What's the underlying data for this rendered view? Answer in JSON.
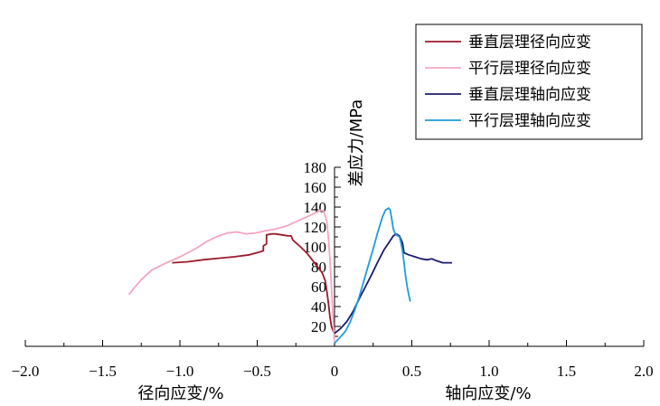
{
  "chart_data": {
    "type": "line",
    "title": "",
    "xlabel_left": "径向应变/%",
    "xlabel_right": "轴向应变/%",
    "ylabel": "差应力/MPa",
    "xlim": [
      -2.0,
      2.0
    ],
    "ylim": [
      0,
      180
    ],
    "x_ticks": [
      -2.0,
      -1.5,
      -1.0,
      -0.5,
      0,
      0.5,
      1.0,
      1.5,
      2.0
    ],
    "x_tick_labels": [
      "−2.0",
      "−1.5",
      "−1.0",
      "−0.5",
      "0",
      "0.5",
      "1.0",
      "1.5",
      "2.0"
    ],
    "y_ticks": [
      20,
      40,
      60,
      80,
      100,
      120,
      140,
      160,
      180
    ],
    "y_tick_labels": [
      "20",
      "40",
      "60",
      "80",
      "100",
      "120",
      "140",
      "160",
      "180"
    ],
    "grid": false,
    "legend_position": "top-right",
    "series": [
      {
        "name": "垂直层理径向应变",
        "color": "#9b1b2a",
        "points": [
          [
            -1.05,
            84
          ],
          [
            -0.95,
            85
          ],
          [
            -0.85,
            87
          ],
          [
            -0.75,
            88.5
          ],
          [
            -0.65,
            90
          ],
          [
            -0.55,
            92
          ],
          [
            -0.48,
            95
          ],
          [
            -0.46,
            96
          ],
          [
            -0.46,
            101
          ],
          [
            -0.44,
            103
          ],
          [
            -0.44,
            112
          ],
          [
            -0.41,
            113
          ],
          [
            -0.38,
            113
          ],
          [
            -0.34,
            112
          ],
          [
            -0.3,
            111
          ],
          [
            -0.28,
            111
          ],
          [
            -0.27,
            107
          ],
          [
            -0.25,
            104
          ],
          [
            -0.22,
            100
          ],
          [
            -0.18,
            94
          ],
          [
            -0.15,
            88
          ],
          [
            -0.11,
            80
          ],
          [
            -0.08,
            74
          ],
          [
            -0.06,
            66
          ],
          [
            -0.05,
            56
          ],
          [
            -0.04,
            44
          ],
          [
            -0.03,
            30
          ],
          [
            -0.02,
            20
          ],
          [
            0,
            12
          ]
        ]
      },
      {
        "name": "平行层理径向应变",
        "color": "#f4a6c0",
        "points": [
          [
            -1.33,
            52
          ],
          [
            -1.3,
            58
          ],
          [
            -1.25,
            67
          ],
          [
            -1.18,
            77
          ],
          [
            -1.1,
            83
          ],
          [
            -1.0,
            90
          ],
          [
            -0.9,
            98
          ],
          [
            -0.82,
            106
          ],
          [
            -0.75,
            111
          ],
          [
            -0.69,
            114
          ],
          [
            -0.63,
            115
          ],
          [
            -0.57,
            113
          ],
          [
            -0.51,
            114
          ],
          [
            -0.45,
            116
          ],
          [
            -0.38,
            118
          ],
          [
            -0.31,
            121
          ],
          [
            -0.24,
            126
          ],
          [
            -0.18,
            130
          ],
          [
            -0.14,
            133
          ],
          [
            -0.11,
            135
          ],
          [
            -0.09,
            137
          ],
          [
            -0.07,
            136
          ],
          [
            -0.05,
            126
          ],
          [
            -0.04,
            110
          ],
          [
            -0.03,
            88
          ],
          [
            -0.02,
            60
          ],
          [
            -0.01,
            30
          ],
          [
            0,
            3
          ]
        ]
      },
      {
        "name": "垂直层理轴向应变",
        "color": "#1c1c6e",
        "points": [
          [
            0,
            13
          ],
          [
            0.04,
            18
          ],
          [
            0.08,
            25
          ],
          [
            0.12,
            35
          ],
          [
            0.16,
            48
          ],
          [
            0.2,
            60
          ],
          [
            0.24,
            72
          ],
          [
            0.28,
            85
          ],
          [
            0.32,
            97
          ],
          [
            0.35,
            104
          ],
          [
            0.38,
            111
          ],
          [
            0.4,
            113
          ],
          [
            0.42,
            111
          ],
          [
            0.44,
            104
          ],
          [
            0.45,
            94
          ],
          [
            0.48,
            92
          ],
          [
            0.52,
            90
          ],
          [
            0.56,
            88
          ],
          [
            0.6,
            87
          ],
          [
            0.63,
            88
          ],
          [
            0.66,
            86
          ],
          [
            0.7,
            84
          ],
          [
            0.74,
            84
          ],
          [
            0.76,
            84
          ]
        ]
      },
      {
        "name": "平行层理轴向应变",
        "color": "#1e9cd8",
        "points": [
          [
            0,
            3
          ],
          [
            0.03,
            8
          ],
          [
            0.07,
            15
          ],
          [
            0.1,
            24
          ],
          [
            0.13,
            36
          ],
          [
            0.16,
            50
          ],
          [
            0.19,
            66
          ],
          [
            0.22,
            82
          ],
          [
            0.25,
            98
          ],
          [
            0.28,
            115
          ],
          [
            0.31,
            130
          ],
          [
            0.33,
            137
          ],
          [
            0.35,
            139
          ],
          [
            0.36,
            137
          ],
          [
            0.37,
            128
          ],
          [
            0.38,
            118
          ],
          [
            0.39,
            114
          ],
          [
            0.4,
            112
          ],
          [
            0.42,
            110
          ],
          [
            0.43,
            104
          ],
          [
            0.44,
            96
          ],
          [
            0.45,
            84
          ],
          [
            0.46,
            70
          ],
          [
            0.47,
            60
          ],
          [
            0.48,
            52
          ],
          [
            0.49,
            45
          ]
        ]
      }
    ]
  }
}
